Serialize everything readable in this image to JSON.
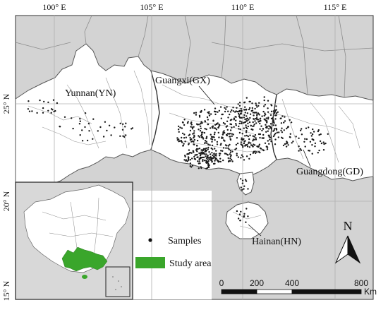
{
  "map": {
    "top_ticks": [
      "100° E",
      "105° E",
      "110° E",
      "115° E"
    ],
    "left_ticks": [
      "25° N",
      "20° N",
      "15° N"
    ],
    "provinces": {
      "yunnan": "Yunnan(YN)",
      "guangxi": "Guangxi(GX)",
      "guangdong": "Guangdong(GD)",
      "hainan": "Hainan(HN)"
    },
    "north_label": "N",
    "legend": {
      "samples_label": "Samples",
      "study_area_label": "Study area",
      "study_area_color": "#3aa62b"
    },
    "scale_bar": {
      "labels": [
        "0",
        "200",
        "400",
        "800"
      ],
      "unit": "Km"
    },
    "colors": {
      "outside_gray": "#d3d3d3",
      "study_region": "#ffffff",
      "boundary": "#8c8c8c",
      "sample_dot": "#1a1a1a"
    }
  }
}
